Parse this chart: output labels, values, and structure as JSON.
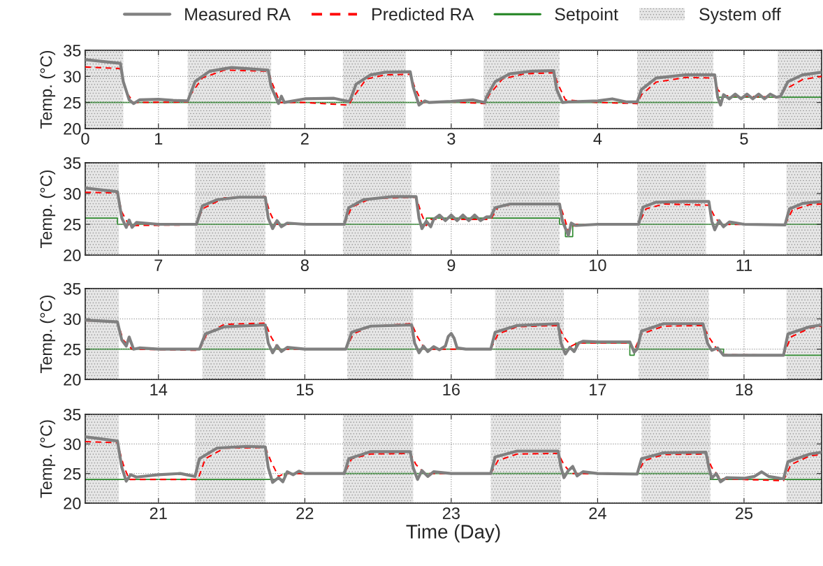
{
  "chart_data": [
    {
      "type": "line",
      "ylabel": "Temp. (°C)",
      "xlim": [
        0.5,
        5.53
      ],
      "ylim": [
        20,
        35
      ],
      "xticks": [
        {
          "value": 0.5,
          "label": "0"
        },
        1,
        2,
        3,
        4,
        5
      ],
      "yticks": [
        20,
        25,
        30,
        35
      ],
      "grid": true,
      "legend": "top",
      "series": [
        {
          "name": "Measured RA",
          "color": "#808080",
          "x": [
            0.5,
            0.74,
            0.76,
            0.8,
            0.83,
            0.87,
            1.0,
            1.1,
            1.2,
            1.21,
            1.25,
            1.35,
            1.5,
            1.75,
            1.77,
            1.82,
            1.84,
            1.86,
            2.0,
            2.2,
            2.3,
            2.31,
            2.35,
            2.45,
            2.55,
            2.72,
            2.74,
            2.78,
            2.82,
            2.85,
            3.0,
            3.15,
            3.23,
            3.24,
            3.3,
            3.4,
            3.55,
            3.7,
            3.72,
            3.76,
            3.8,
            4.0,
            4.1,
            4.2,
            4.27,
            4.3,
            4.4,
            4.6,
            4.8,
            4.82,
            4.84,
            4.86,
            4.9,
            4.94,
            4.98,
            5.02,
            5.06,
            5.1,
            5.14,
            5.18,
            5.22,
            5.25,
            5.3,
            5.4,
            5.53
          ],
          "values": [
            33.2,
            32.5,
            29,
            25.5,
            24.8,
            25.5,
            25.6,
            25.4,
            25.3,
            26,
            29,
            31,
            31.7,
            31.2,
            28,
            24.8,
            26.2,
            25,
            25.7,
            25.8,
            25.2,
            25.5,
            28.5,
            30.3,
            30.8,
            30.9,
            28,
            24.5,
            25.3,
            25,
            25.2,
            25.5,
            25,
            26,
            29,
            30.5,
            31,
            31.1,
            27.5,
            25,
            25.1,
            25.3,
            25.7,
            25.1,
            25.1,
            27.5,
            29.7,
            30.3,
            30.3,
            26,
            24.5,
            26.5,
            25.7,
            26.6,
            25.7,
            26.6,
            25.7,
            26.6,
            25.7,
            26.6,
            26,
            26.2,
            29,
            30.3,
            30.8
          ]
        },
        {
          "name": "Predicted RA",
          "color": "#ff0000",
          "line_style": "dashed",
          "x": [
            0.5,
            0.74,
            0.78,
            0.83,
            1.2,
            1.22,
            1.3,
            1.45,
            1.75,
            1.78,
            1.83,
            2.0,
            2.3,
            2.33,
            2.42,
            2.55,
            2.72,
            2.75,
            2.8,
            3.0,
            3.23,
            3.26,
            3.35,
            3.5,
            3.7,
            3.73,
            3.78,
            4.0,
            4.27,
            4.3,
            4.4,
            4.6,
            4.8,
            4.82,
            4.86,
            5.24,
            5.28,
            5.4,
            5.53
          ],
          "values": [
            31.8,
            31.5,
            27,
            25,
            25.1,
            26.5,
            29.7,
            31.2,
            31,
            28.5,
            25,
            25,
            24.5,
            26,
            29.5,
            30.3,
            30.4,
            28,
            25,
            25.1,
            24.8,
            26.5,
            29.5,
            30.5,
            30.7,
            28.5,
            25.5,
            25,
            24.8,
            26.5,
            28.9,
            29.8,
            29.7,
            27.5,
            26.3,
            26,
            27.5,
            29.4,
            30
          ]
        },
        {
          "name": "Setpoint",
          "color": "#2e8b2e",
          "type": "step",
          "x": [
            0.5,
            4.83,
            5.53
          ],
          "values": [
            25,
            26,
            26
          ]
        }
      ],
      "bands": [
        {
          "axis": "x",
          "from": 0.5,
          "to": 0.76,
          "label": "System off",
          "color": "#e6e6e6"
        },
        {
          "axis": "x",
          "from": 1.2,
          "to": 1.77,
          "color": "#e6e6e6"
        },
        {
          "axis": "x",
          "from": 2.26,
          "to": 2.69,
          "color": "#e6e6e6"
        },
        {
          "axis": "x",
          "from": 3.22,
          "to": 3.74,
          "color": "#e6e6e6"
        },
        {
          "axis": "x",
          "from": 4.27,
          "to": 4.79,
          "color": "#e6e6e6"
        },
        {
          "axis": "x",
          "from": 5.23,
          "to": 5.53,
          "color": "#e6e6e6"
        }
      ]
    },
    {
      "type": "line",
      "ylabel": "Temp. (°C)",
      "xlim": [
        6.5,
        11.53
      ],
      "ylim": [
        20,
        35
      ],
      "xticks": [
        7,
        8,
        9,
        10,
        11
      ],
      "yticks": [
        20,
        25,
        30,
        35
      ],
      "grid": true,
      "series": [
        {
          "color": "#808080",
          "x": [
            6.5,
            6.72,
            6.75,
            6.78,
            6.8,
            6.82,
            6.85,
            7.0,
            7.26,
            7.3,
            7.4,
            7.55,
            7.73,
            7.75,
            7.78,
            7.81,
            7.84,
            7.88,
            8.0,
            8.27,
            8.3,
            8.4,
            8.6,
            8.76,
            8.78,
            8.8,
            8.83,
            8.86,
            8.88,
            8.92,
            8.96,
            9.0,
            9.04,
            9.08,
            9.12,
            9.16,
            9.2,
            9.24,
            9.27,
            9.3,
            9.4,
            9.74,
            9.76,
            9.8,
            9.82,
            9.85,
            10.0,
            10.28,
            10.31,
            10.4,
            10.6,
            10.76,
            10.78,
            10.8,
            10.83,
            10.86,
            10.9,
            11.0,
            11.28,
            11.31,
            11.4,
            11.53
          ],
          "values": [
            30.9,
            30.3,
            26,
            24.5,
            25.7,
            24.5,
            25.3,
            25,
            25,
            28,
            29,
            29.4,
            29.4,
            26,
            24.3,
            25.6,
            24.6,
            25.2,
            25,
            25,
            27.7,
            29,
            29.5,
            29.5,
            26,
            24.3,
            25.5,
            24.6,
            25.8,
            26.5,
            25.6,
            26.5,
            25.6,
            26.5,
            25.6,
            26.5,
            25.6,
            26.2,
            26.2,
            27.7,
            28.3,
            28.3,
            25.5,
            23.2,
            25.2,
            24.8,
            25,
            25,
            27.8,
            28.6,
            28.7,
            28.7,
            25.5,
            24.1,
            25.6,
            24.6,
            25.4,
            25,
            24.9,
            27.5,
            28.4,
            28.7
          ]
        },
        {
          "color": "#ff0000",
          "line_style": "dashed",
          "x": [
            6.5,
            6.72,
            6.75,
            6.8,
            7.26,
            7.3,
            7.45,
            7.73,
            7.76,
            7.8,
            8.27,
            8.32,
            8.45,
            8.76,
            8.8,
            8.83,
            8.86,
            9.27,
            9.32,
            9.45,
            9.74,
            9.78,
            9.8,
            9.85,
            10.28,
            10.33,
            10.45,
            10.76,
            10.8,
            10.84,
            11.28,
            11.33,
            11.45,
            11.53
          ],
          "values": [
            30.2,
            30.1,
            27,
            24.8,
            24.9,
            27.5,
            29.3,
            29.5,
            27,
            25,
            25,
            27.8,
            29.2,
            29.4,
            26.5,
            24.8,
            25.8,
            25.8,
            27.8,
            28.4,
            28.4,
            25.5,
            23.8,
            25,
            25,
            27.5,
            28.3,
            28.1,
            26.2,
            25,
            24.9,
            27.3,
            28.2,
            28.3
          ]
        },
        {
          "color": "#2e8b2e",
          "type": "step",
          "x": [
            6.5,
            6.72,
            8.83,
            9.74,
            9.78,
            9.83,
            11.53
          ],
          "values": [
            26,
            25,
            26,
            25,
            23,
            25,
            25
          ]
        }
      ],
      "bands": [
        {
          "axis": "x",
          "from": 6.5,
          "to": 6.73,
          "color": "#e6e6e6"
        },
        {
          "axis": "x",
          "from": 7.25,
          "to": 7.73,
          "color": "#e6e6e6"
        },
        {
          "axis": "x",
          "from": 8.26,
          "to": 8.73,
          "color": "#e6e6e6"
        },
        {
          "axis": "x",
          "from": 9.27,
          "to": 9.74,
          "color": "#e6e6e6"
        },
        {
          "axis": "x",
          "from": 10.27,
          "to": 10.74,
          "color": "#e6e6e6"
        },
        {
          "axis": "x",
          "from": 11.29,
          "to": 11.53,
          "color": "#e6e6e6"
        }
      ]
    },
    {
      "type": "line",
      "ylabel": "Temp. (°C)",
      "xlim": [
        13.5,
        18.53
      ],
      "ylim": [
        20,
        35
      ],
      "xticks": [
        14,
        15,
        16,
        17,
        18
      ],
      "yticks": [
        20,
        25,
        30,
        35
      ],
      "grid": true,
      "series": [
        {
          "color": "#808080",
          "x": [
            13.5,
            13.72,
            13.75,
            13.78,
            13.8,
            13.83,
            13.87,
            14.0,
            14.28,
            14.32,
            14.45,
            14.73,
            14.75,
            14.78,
            14.81,
            14.84,
            14.88,
            15.0,
            15.28,
            15.32,
            15.45,
            15.73,
            15.75,
            15.78,
            15.81,
            15.84,
            15.88,
            15.92,
            15.96,
            15.98,
            16.0,
            16.02,
            16.04,
            16.1,
            16.27,
            16.3,
            16.45,
            16.73,
            16.75,
            16.78,
            16.81,
            16.84,
            16.87,
            16.9,
            17.0,
            17.22,
            17.25,
            17.27,
            17.3,
            17.45,
            17.72,
            17.75,
            17.78,
            17.82,
            17.86,
            18.0,
            18.27,
            18.3,
            18.45,
            18.53
          ],
          "values": [
            29.8,
            29.5,
            26.5,
            25.5,
            27,
            25,
            25.2,
            25,
            25,
            27.5,
            28.7,
            29,
            26,
            24.4,
            25.6,
            24.6,
            25.3,
            25,
            25,
            27.8,
            28.8,
            29,
            26,
            24.4,
            25.5,
            24.6,
            25.4,
            24.9,
            25.5,
            27.1,
            27.6,
            26.8,
            25.2,
            25,
            25,
            27.8,
            28.9,
            29.2,
            26,
            24.2,
            25.3,
            24.6,
            26,
            26.3,
            26.2,
            26.2,
            24.5,
            25,
            28,
            29.2,
            29.2,
            26,
            24.8,
            25.2,
            24,
            24,
            24,
            27.5,
            28.7,
            29
          ]
        },
        {
          "color": "#ff0000",
          "line_style": "dashed",
          "x": [
            13.5,
            13.72,
            13.76,
            13.82,
            14.28,
            14.33,
            14.45,
            14.73,
            14.77,
            14.82,
            15.28,
            15.33,
            15.45,
            15.73,
            15.77,
            15.82,
            16.27,
            16.32,
            16.45,
            16.73,
            16.77,
            16.82,
            16.86,
            17.22,
            17.25,
            17.3,
            17.45,
            17.72,
            17.76,
            17.82,
            17.86,
            18.27,
            18.32,
            18.45,
            18.53
          ],
          "values": [
            29.7,
            29.5,
            26.5,
            25,
            24.8,
            27.5,
            29.1,
            29.3,
            27,
            25,
            25,
            27.5,
            28.8,
            29.2,
            27,
            25,
            25,
            27.5,
            28.7,
            28.9,
            27,
            25.5,
            26,
            26,
            24.8,
            27.5,
            28.8,
            28.9,
            27,
            24.8,
            24.1,
            24,
            27,
            28.5,
            28.8
          ]
        },
        {
          "color": "#2e8b2e",
          "type": "step",
          "x": [
            13.5,
            16.85,
            17.22,
            17.25,
            17.86,
            18.53
          ],
          "values": [
            25,
            26,
            24,
            25,
            24,
            24
          ]
        }
      ],
      "bands": [
        {
          "axis": "x",
          "from": 13.5,
          "to": 13.73,
          "color": "#e6e6e6"
        },
        {
          "axis": "x",
          "from": 14.3,
          "to": 14.73,
          "color": "#e6e6e6"
        },
        {
          "axis": "x",
          "from": 15.29,
          "to": 15.74,
          "color": "#e6e6e6"
        },
        {
          "axis": "x",
          "from": 16.3,
          "to": 16.77,
          "color": "#e6e6e6"
        },
        {
          "axis": "x",
          "from": 17.28,
          "to": 17.76,
          "color": "#e6e6e6"
        },
        {
          "axis": "x",
          "from": 18.29,
          "to": 18.53,
          "color": "#e6e6e6"
        }
      ]
    },
    {
      "type": "line",
      "ylabel": "Temp. (°C)",
      "xlabel": "Time (Day)",
      "xlim": [
        20.5,
        25.53
      ],
      "ylim": [
        20,
        35
      ],
      "xticks": [
        21,
        22,
        23,
        24,
        25
      ],
      "yticks": [
        20,
        25,
        30,
        35
      ],
      "grid": true,
      "series": [
        {
          "color": "#808080",
          "x": [
            20.5,
            20.72,
            20.75,
            20.78,
            20.81,
            20.85,
            21.0,
            21.15,
            21.25,
            21.28,
            21.4,
            21.6,
            21.73,
            21.75,
            21.78,
            21.82,
            21.85,
            21.88,
            21.92,
            21.96,
            22.0,
            22.27,
            22.3,
            22.45,
            22.72,
            22.74,
            22.77,
            22.8,
            22.84,
            22.88,
            23.0,
            23.27,
            23.3,
            23.45,
            23.73,
            23.75,
            23.77,
            23.8,
            23.83,
            23.86,
            23.9,
            24.0,
            24.27,
            24.3,
            24.45,
            24.74,
            24.76,
            24.78,
            24.81,
            24.84,
            24.88,
            25.0,
            25.07,
            25.12,
            25.17,
            25.27,
            25.3,
            25.45,
            25.53
          ],
          "values": [
            31.2,
            30.5,
            26,
            23.7,
            24.8,
            24.4,
            24.8,
            25,
            24.5,
            27.5,
            29.3,
            29.6,
            29.5,
            26,
            23.5,
            24.3,
            23.6,
            25.3,
            24.8,
            25.4,
            25,
            25,
            27.5,
            28.7,
            28.7,
            26,
            24,
            25.5,
            24.5,
            25.3,
            25,
            25,
            27.8,
            28.8,
            28.8,
            26,
            24.3,
            25.5,
            26.2,
            24.6,
            25.3,
            25,
            24.9,
            27.5,
            28.5,
            28.6,
            26,
            24.2,
            25,
            23.6,
            24.3,
            24.2,
            24.5,
            25.3,
            24.5,
            24.1,
            27,
            28.3,
            28.6
          ]
        },
        {
          "color": "#ff0000",
          "line_style": "dashed",
          "x": [
            20.5,
            20.72,
            20.76,
            20.8,
            21.27,
            21.32,
            21.45,
            21.73,
            21.77,
            21.82,
            21.86,
            22.27,
            22.32,
            22.45,
            22.72,
            22.76,
            22.82,
            23.27,
            23.32,
            23.45,
            23.73,
            23.77,
            23.82,
            24.27,
            24.32,
            24.45,
            24.74,
            24.78,
            24.84,
            25.27,
            25.32,
            25.45,
            25.53
          ],
          "values": [
            30.4,
            30.2,
            26.5,
            24,
            24,
            27.5,
            29.3,
            29.4,
            27,
            24.5,
            25,
            25,
            27.5,
            28.3,
            28.4,
            26.5,
            25,
            25,
            27.2,
            28.3,
            28.4,
            26.5,
            25,
            24.9,
            27.2,
            28.2,
            28.3,
            26,
            24.1,
            23.8,
            26.5,
            28,
            28.2
          ]
        },
        {
          "color": "#2e8b2e",
          "type": "step",
          "x": [
            20.5,
            21.86,
            24.77,
            25.53
          ],
          "values": [
            24,
            25,
            24,
            24
          ]
        }
      ],
      "bands": [
        {
          "axis": "x",
          "from": 20.5,
          "to": 20.73,
          "color": "#e6e6e6"
        },
        {
          "axis": "x",
          "from": 21.25,
          "to": 21.73,
          "color": "#e6e6e6"
        },
        {
          "axis": "x",
          "from": 22.26,
          "to": 22.74,
          "color": "#e6e6e6"
        },
        {
          "axis": "x",
          "from": 23.27,
          "to": 23.75,
          "color": "#e6e6e6"
        },
        {
          "axis": "x",
          "from": 24.3,
          "to": 24.77,
          "color": "#e6e6e6"
        },
        {
          "axis": "x",
          "from": 25.29,
          "to": 25.53,
          "color": "#e6e6e6"
        }
      ]
    }
  ]
}
